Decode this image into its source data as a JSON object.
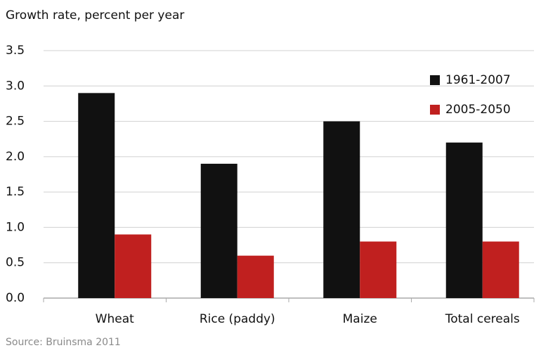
{
  "chart_data": {
    "type": "bar",
    "y_label": "Growth rate, percent per year",
    "source": "Source: Bruinsma 2011",
    "categories": [
      "Wheat",
      "Rice (paddy)",
      "Maize",
      "Total cereals"
    ],
    "series": [
      {
        "name": "1961-2007",
        "color": "#111111",
        "values": [
          2.9,
          1.9,
          2.5,
          2.2
        ]
      },
      {
        "name": "2005-2050",
        "color": "#c0201f",
        "values": [
          0.9,
          0.6,
          0.8,
          0.8
        ]
      }
    ],
    "ylim": [
      0,
      3.5
    ],
    "yticks": [
      {
        "value": 0,
        "label": "0.0"
      },
      0.5,
      {
        "value": 1,
        "label": "1.0"
      },
      1.5,
      {
        "value": 2,
        "label": "2.0"
      },
      2.5,
      {
        "value": 3,
        "label": "3.0"
      },
      3.5
    ],
    "grid": true,
    "legend": "upper-right"
  }
}
